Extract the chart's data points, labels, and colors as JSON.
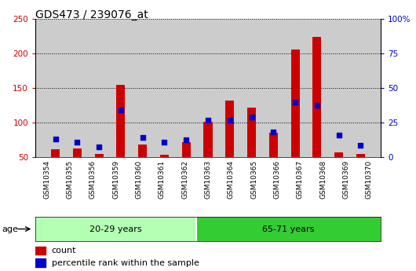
{
  "title": "GDS473 / 239076_at",
  "samples": [
    "GSM10354",
    "GSM10355",
    "GSM10356",
    "GSM10359",
    "GSM10360",
    "GSM10361",
    "GSM10362",
    "GSM10363",
    "GSM10364",
    "GSM10365",
    "GSM10366",
    "GSM10367",
    "GSM10368",
    "GSM10369",
    "GSM10370"
  ],
  "count_values": [
    62,
    63,
    55,
    155,
    68,
    53,
    72,
    101,
    132,
    122,
    85,
    206,
    224,
    57,
    55
  ],
  "percentile_left_values": [
    76,
    72,
    65,
    118,
    78,
    72,
    75,
    103,
    104,
    108,
    87,
    130,
    125,
    82,
    67
  ],
  "group1_label": "20-29 years",
  "group2_label": "65-71 years",
  "group1_count": 7,
  "group2_count": 8,
  "ylim_left": [
    50,
    250
  ],
  "ylim_right": [
    0,
    100
  ],
  "yticks_left": [
    50,
    100,
    150,
    200,
    250
  ],
  "yticks_right": [
    0,
    25,
    50,
    75,
    100
  ],
  "ytick_labels_right": [
    "0",
    "25",
    "50",
    "75",
    "100%"
  ],
  "bar_color": "#cc0000",
  "percentile_color": "#0000cc",
  "group1_bg": "#b3ffb3",
  "group2_bg": "#33cc33",
  "plot_bg": "#cccccc",
  "bar_width": 0.4,
  "baseline": 50,
  "legend_count_label": "count",
  "legend_pct_label": "percentile rank within the sample",
  "age_label": "age"
}
